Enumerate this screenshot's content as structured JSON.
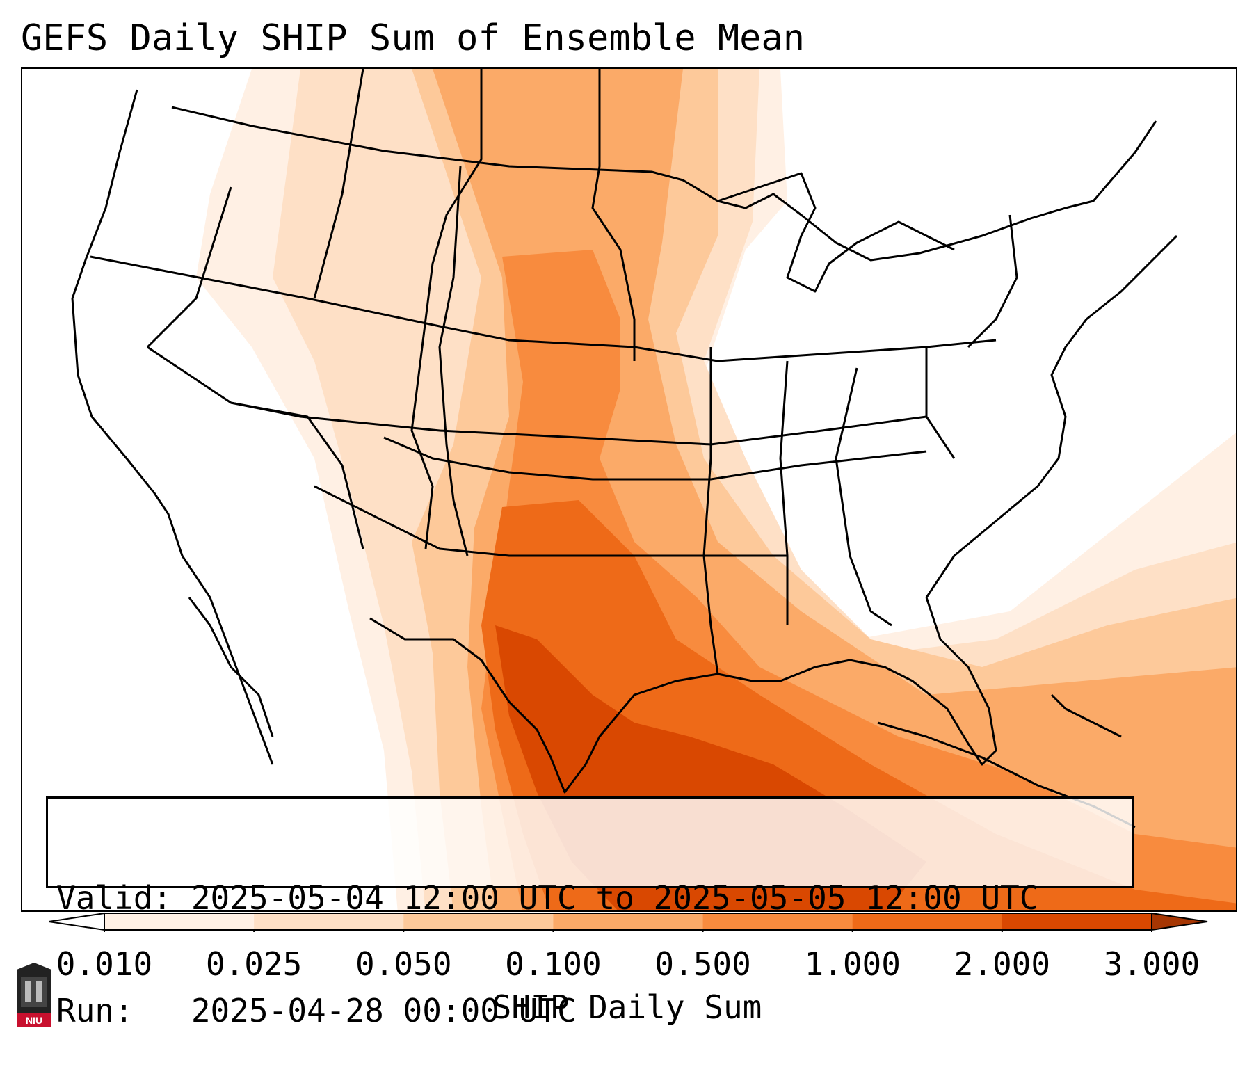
{
  "title": "GEFS Daily SHIP Sum of Ensemble Mean",
  "info": {
    "valid_line": "Valid: 2025-05-04 12:00 UTC to 2025-05-05 12:00 UTC",
    "run_line": "Run:   2025-04-28 00:00 UTC"
  },
  "colorbar": {
    "label": "SHIP Daily Sum",
    "ticks": [
      "0.010",
      "0.025",
      "0.050",
      "0.100",
      "0.500",
      "1.000",
      "2.000",
      "3.000"
    ],
    "colors": [
      "#fff0e4",
      "#fee0c6",
      "#fdc99a",
      "#fbaa68",
      "#f88b3e",
      "#ee6a18",
      "#d94801"
    ],
    "under_color": "#ffffff",
    "over_color": "#a63603"
  },
  "logo": {
    "text": "NIU",
    "color": "#c8102e"
  }
}
